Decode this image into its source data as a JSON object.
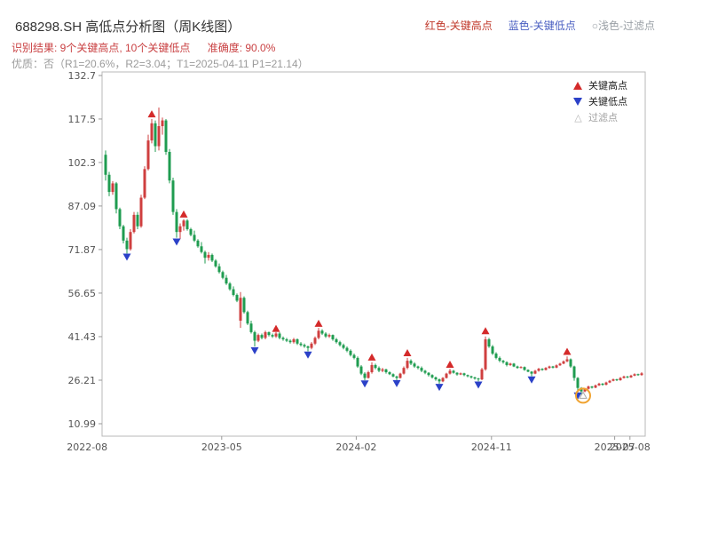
{
  "header": {
    "title": "688298.SH 高低点分析图（周K线图）",
    "legend": [
      {
        "text": "红色-关键高点",
        "color": "#c0392b"
      },
      {
        "text": "蓝色-关键低点",
        "color": "#4a5fc1"
      },
      {
        "text": "○浅色-过滤点",
        "color": "#9aa0a6"
      }
    ],
    "result_line": {
      "text": "识别结果: 9个关键高点, 10个关键低点",
      "accuracy": "准确度: 90.0%",
      "color": "#c94042"
    },
    "quality_line": {
      "text": "优质：否（R1=20.6%，R2=3.04；T1=2025-04-11 P1=21.14）",
      "color": "#9b9b9b"
    }
  },
  "chart_legend": {
    "high": "关键高点",
    "low": "关键低点",
    "filtered": "过滤点"
  },
  "chart_data": {
    "type": "candlestick",
    "title": "688298.SH 高低点分析图（周K线图）",
    "ylim": [
      10.99,
      132.7
    ],
    "y_ticks": [
      "132.7",
      "117.5",
      "102.3",
      "87.09",
      "71.87",
      "56.65",
      "41.43",
      "26.21",
      "10.99"
    ],
    "x_labels": [
      {
        "label": "2022-08",
        "week": -5.2
      },
      {
        "label": "2023-05",
        "week": 32.7
      },
      {
        "label": "2024-02",
        "week": 70.6
      },
      {
        "label": "2024-11",
        "week": 108.7
      },
      {
        "label": "2025-07",
        "week": 143.4
      },
      {
        "label": "2025-08",
        "week": 147.7
      }
    ],
    "candles": [
      [
        105,
        106.5,
        96,
        98
      ],
      [
        98,
        99,
        90.5,
        92
      ],
      [
        92,
        95.8,
        91,
        95
      ],
      [
        95,
        95.5,
        84.5,
        86
      ],
      [
        86,
        86.5,
        79,
        80
      ],
      [
        80,
        80.5,
        74,
        75
      ],
      [
        75,
        76,
        70.5,
        72
      ],
      [
        72,
        79,
        71.5,
        78
      ],
      [
        78,
        85,
        77.5,
        84
      ],
      [
        84,
        85,
        79,
        80
      ],
      [
        80,
        91,
        79.5,
        90
      ],
      [
        90,
        101,
        89.5,
        100
      ],
      [
        100,
        112,
        99.5,
        110
      ],
      [
        110,
        117.5,
        109,
        116
      ],
      [
        116,
        117,
        106,
        108
      ],
      [
        108,
        121.5,
        106.5,
        115
      ],
      [
        115,
        118,
        112,
        117
      ],
      [
        117,
        117.5,
        105,
        106
      ],
      [
        106,
        107,
        95,
        96
      ],
      [
        96,
        97,
        84,
        85
      ],
      [
        85,
        86,
        76,
        78
      ],
      [
        78,
        81,
        75.5,
        80
      ],
      [
        80,
        82.5,
        78.5,
        82
      ],
      [
        82,
        82.5,
        78.5,
        79
      ],
      [
        79,
        79.5,
        76.5,
        77
      ],
      [
        77,
        78.5,
        74.5,
        75
      ],
      [
        75,
        75.5,
        72.5,
        73
      ],
      [
        73,
        74.5,
        70.5,
        71
      ],
      [
        71,
        71.5,
        67,
        69
      ],
      [
        69,
        71,
        68,
        70
      ],
      [
        70,
        70.5,
        67.5,
        68
      ],
      [
        68,
        68.5,
        65.5,
        66
      ],
      [
        66,
        67,
        63.5,
        64
      ],
      [
        64,
        64.5,
        61.5,
        62
      ],
      [
        62,
        63,
        59.5,
        60
      ],
      [
        60,
        60.5,
        57.5,
        58
      ],
      [
        58,
        59,
        55.5,
        56
      ],
      [
        56,
        56.5,
        53.5,
        54
      ],
      [
        47,
        57,
        44.5,
        55
      ],
      [
        55,
        55.5,
        49.5,
        50
      ],
      [
        50,
        50.5,
        45.5,
        46
      ],
      [
        46,
        47,
        42.5,
        43
      ],
      [
        43,
        43.5,
        38,
        40
      ],
      [
        40,
        42.5,
        39.5,
        42
      ],
      [
        42,
        42.5,
        40.5,
        41
      ],
      [
        41,
        43.5,
        40.5,
        43
      ],
      [
        43,
        43.2,
        41.5,
        42
      ],
      [
        42,
        42.5,
        41,
        41.5
      ],
      [
        41.5,
        43,
        41,
        42.5
      ],
      [
        42.5,
        43,
        40.5,
        41
      ],
      [
        41,
        41.5,
        40,
        40.5
      ],
      [
        40.5,
        41,
        39.5,
        40
      ],
      [
        40,
        40.5,
        39,
        39.5
      ],
      [
        39.5,
        41,
        39,
        40.5
      ],
      [
        40.5,
        40.8,
        38.5,
        39
      ],
      [
        39,
        39.5,
        38,
        38.5
      ],
      [
        38.5,
        39,
        37.5,
        38
      ],
      [
        38,
        38.3,
        36.3,
        37.5
      ],
      [
        37.5,
        39.5,
        37,
        39
      ],
      [
        39,
        41.5,
        38.5,
        41
      ],
      [
        41,
        44.5,
        40.5,
        43.5
      ],
      [
        43.5,
        44,
        42,
        42.5
      ],
      [
        42.5,
        43,
        41,
        41.5
      ],
      [
        41.5,
        42.5,
        41,
        42
      ],
      [
        42,
        42.2,
        40,
        40.5
      ],
      [
        40.5,
        41,
        39,
        39.5
      ],
      [
        39.5,
        40,
        38,
        38.5
      ],
      [
        38.5,
        39,
        37,
        37.5
      ],
      [
        37.5,
        38,
        36,
        36.5
      ],
      [
        36.5,
        37,
        34.5,
        35
      ],
      [
        35,
        35.5,
        33.5,
        34
      ],
      [
        34,
        34.5,
        30.5,
        31
      ],
      [
        31,
        31.5,
        28,
        28.5
      ],
      [
        28.5,
        29,
        26.2,
        27
      ],
      [
        27,
        29.5,
        26.8,
        29
      ],
      [
        29,
        32.5,
        28.5,
        31.5
      ],
      [
        31.5,
        32,
        30,
        30.5
      ],
      [
        30.5,
        31,
        29,
        29.5
      ],
      [
        29.5,
        30.5,
        29,
        30
      ],
      [
        30,
        30.2,
        28.5,
        29
      ],
      [
        29,
        29.3,
        28,
        28.3
      ],
      [
        28.3,
        28.6,
        27.2,
        27.5
      ],
      [
        27.5,
        27.8,
        26.3,
        27
      ],
      [
        27,
        28.8,
        26.8,
        28.5
      ],
      [
        28.5,
        31,
        28.2,
        30.5
      ],
      [
        30.5,
        34,
        30,
        33
      ],
      [
        33,
        33.5,
        31.5,
        32
      ],
      [
        32,
        32.5,
        30.5,
        31
      ],
      [
        31,
        31.3,
        30,
        30.5
      ],
      [
        30.5,
        31,
        29,
        29.5
      ],
      [
        29.5,
        29.8,
        28.3,
        28.8
      ],
      [
        28.8,
        29,
        27.5,
        28
      ],
      [
        28,
        28.3,
        26.8,
        27.2
      ],
      [
        27.2,
        27.5,
        26,
        26.5
      ],
      [
        26.5,
        26.8,
        25,
        25.8
      ],
      [
        25.8,
        27.3,
        25.5,
        27
      ],
      [
        27,
        28.8,
        26.8,
        28.5
      ],
      [
        28.5,
        30.2,
        28.2,
        29.5
      ],
      [
        29.5,
        29.8,
        28.5,
        28.8
      ],
      [
        28.8,
        29,
        27.8,
        28.2
      ],
      [
        28.2,
        28.9,
        28,
        28.6
      ],
      [
        28.6,
        28.8,
        27.6,
        28
      ],
      [
        28,
        28.2,
        27.2,
        27.6
      ],
      [
        27.6,
        27.8,
        26.8,
        27.2
      ],
      [
        27.2,
        27.4,
        26.4,
        26.8
      ],
      [
        26.8,
        27,
        25.8,
        26.5
      ],
      [
        26.5,
        30.5,
        26.2,
        30
      ],
      [
        30,
        41.5,
        29.5,
        40.5
      ],
      [
        40.5,
        41,
        37.5,
        38
      ],
      [
        38,
        38.5,
        35,
        35.5
      ],
      [
        35.5,
        36,
        33.5,
        34
      ],
      [
        34,
        34.5,
        32.5,
        33
      ],
      [
        33,
        33.3,
        32,
        32.5
      ],
      [
        32.5,
        32.8,
        31,
        31.5
      ],
      [
        31.5,
        32.3,
        31.2,
        32
      ],
      [
        32,
        32.2,
        30.8,
        31
      ],
      [
        31,
        31.3,
        30.2,
        30.5
      ],
      [
        30.5,
        31.1,
        30.3,
        30.8
      ],
      [
        30.8,
        31,
        29.5,
        29.8
      ],
      [
        29.8,
        30,
        29,
        29.2
      ],
      [
        29.2,
        29.4,
        27.6,
        28.5
      ],
      [
        28.5,
        29.8,
        28.3,
        29.5
      ],
      [
        29.5,
        30.5,
        29.2,
        30.2
      ],
      [
        30.2,
        30.4,
        29.5,
        29.8
      ],
      [
        29.8,
        30.8,
        29.6,
        30.5
      ],
      [
        30.5,
        31.3,
        30.2,
        31
      ],
      [
        31,
        31.2,
        30.3,
        30.6
      ],
      [
        30.6,
        31.7,
        30.4,
        31.4
      ],
      [
        31.4,
        32.3,
        31.2,
        32
      ],
      [
        32,
        33.1,
        31.8,
        32.8
      ],
      [
        32.8,
        34.5,
        32.5,
        33.5
      ],
      [
        33.5,
        33.8,
        30.5,
        31
      ],
      [
        31,
        31.3,
        26,
        27
      ],
      [
        27,
        27.3,
        22,
        23.5
      ],
      [
        23.5,
        23.8,
        21.2,
        22.3
      ],
      [
        22.3,
        23.5,
        22,
        23.2
      ],
      [
        23.2,
        24.3,
        23,
        24
      ],
      [
        24,
        24.2,
        23.3,
        23.6
      ],
      [
        23.6,
        24.7,
        23.4,
        24.4
      ],
      [
        24.4,
        25.3,
        24.2,
        25
      ],
      [
        25,
        25.2,
        24.3,
        24.6
      ],
      [
        24.6,
        25.7,
        24.4,
        25.4
      ],
      [
        25.4,
        26.3,
        25.2,
        26
      ],
      [
        26,
        26.8,
        25.8,
        26.5
      ],
      [
        26.5,
        26.7,
        25.9,
        26.2
      ],
      [
        26.2,
        27.3,
        26,
        27
      ],
      [
        27,
        27.8,
        26.8,
        27.5
      ],
      [
        27.5,
        27.7,
        26.9,
        27.2
      ],
      [
        27.2,
        28.1,
        27,
        27.8
      ],
      [
        27.8,
        28.6,
        27.6,
        28.3
      ],
      [
        28.3,
        28.5,
        27.7,
        28
      ],
      [
        28,
        29,
        27.8,
        28.6
      ]
    ],
    "key_highs": [
      {
        "week": 13,
        "price": 119
      },
      {
        "week": 22,
        "price": 84
      },
      {
        "week": 48,
        "price": 44
      },
      {
        "week": 60,
        "price": 45.8
      },
      {
        "week": 75,
        "price": 34
      },
      {
        "week": 85,
        "price": 35.5
      },
      {
        "week": 97,
        "price": 31.5
      },
      {
        "week": 107,
        "price": 43.2
      },
      {
        "week": 130,
        "price": 36
      }
    ],
    "key_lows": [
      {
        "week": 6,
        "price": 69.5
      },
      {
        "week": 20,
        "price": 74.8
      },
      {
        "week": 42,
        "price": 36.8
      },
      {
        "week": 57,
        "price": 35.3
      },
      {
        "week": 73,
        "price": 25.2
      },
      {
        "week": 82,
        "price": 25.3
      },
      {
        "week": 94,
        "price": 24
      },
      {
        "week": 105,
        "price": 24.8
      },
      {
        "week": 120,
        "price": 26.6
      },
      {
        "week": 133,
        "price": 21
      }
    ],
    "filtered_points": [
      {
        "week": 134.5,
        "price": 20.8
      }
    ],
    "highlight_circle": {
      "week": 134.5,
      "price": 20.8,
      "color": "#f0a330"
    },
    "colors": {
      "up": "#cf3f3f",
      "down": "#1f9c50",
      "key_high": "#d42a2a",
      "key_low": "#2b41c8",
      "filtered": "#aaaaaa"
    }
  }
}
